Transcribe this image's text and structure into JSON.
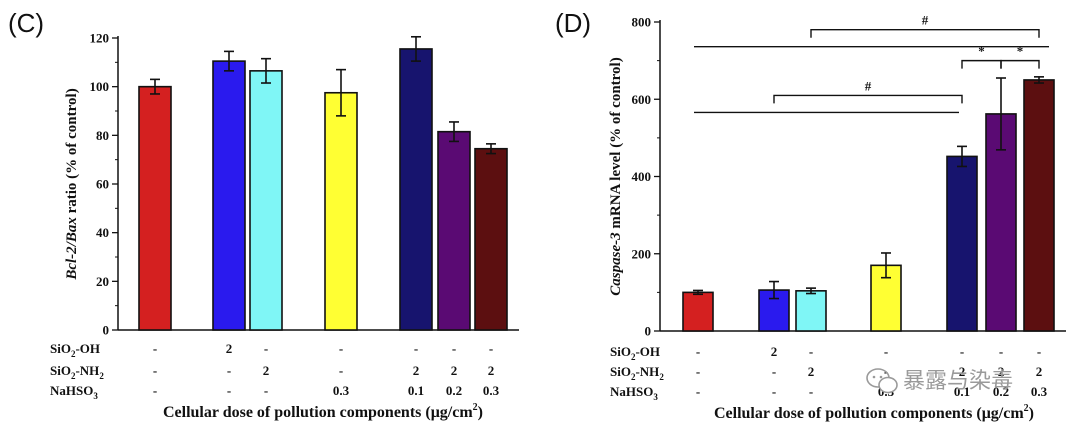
{
  "watermark": {
    "text": "暴露与染毒",
    "icon": "wechat-icon"
  },
  "chart_data": [
    {
      "panel": "(C)",
      "type": "bar",
      "ylabel_italic": "Bcl-2/Bax",
      "ylabel_rest": "ratio (% of control)",
      "ylim": [
        0,
        120
      ],
      "yticks": [
        0,
        20,
        40,
        60,
        80,
        100,
        120
      ],
      "xlabel_main": "Cellular dose of pollution components (",
      "xlabel_unit": "μg/cm",
      "xlabel_sup": "2",
      "xlabel_end": ")",
      "bars": [
        {
          "value": 100,
          "error": 3,
          "color": "#d42020",
          "group": 0
        },
        {
          "value": 110.5,
          "error": 4,
          "color": "#2a1aee",
          "group": 1
        },
        {
          "value": 106.5,
          "error": 5,
          "color": "#7ff6f6",
          "group": 1
        },
        {
          "value": 97.5,
          "error": 9.5,
          "color": "#ffff33",
          "group": 2
        },
        {
          "value": 115.5,
          "error": 5,
          "color": "#17146e",
          "group": 3
        },
        {
          "value": 81.5,
          "error": 4,
          "color": "#5a0a73",
          "group": 3
        },
        {
          "value": 74.5,
          "error": 2,
          "color": "#5c0f10",
          "group": 3
        }
      ],
      "table": {
        "rows": [
          {
            "label": "SiO",
            "sub": "2",
            "suffix": "-OH",
            "cells": [
              "-",
              "2",
              "-",
              "-",
              "-",
              "-",
              "-"
            ]
          },
          {
            "label": "SiO",
            "sub": "2",
            "suffix": "-NH",
            "sub2": "2",
            "cells": [
              "-",
              "-",
              "2",
              "-",
              "2",
              "2",
              "2"
            ]
          },
          {
            "label": "NaHSO",
            "sub": "3",
            "suffix": "",
            "cells": [
              "-",
              "-",
              "-",
              "0.3",
              "0.1",
              "0.2",
              "0.3"
            ]
          }
        ]
      },
      "significance": []
    },
    {
      "panel": "(D)",
      "type": "bar",
      "ylabel_italic": "Caspase-3",
      "ylabel_rest": "mRNA level (% of control)",
      "ylim": [
        0,
        800
      ],
      "yticks": [
        0,
        200,
        400,
        600,
        800
      ],
      "xlabel_main": "Cellular dose of pollution components (",
      "xlabel_unit": "μg/cm",
      "xlabel_sup": "2",
      "xlabel_end": ")",
      "bars": [
        {
          "value": 100,
          "error": 5,
          "color": "#d42020",
          "group": 0
        },
        {
          "value": 106,
          "error": 22,
          "color": "#2a1aee",
          "group": 1
        },
        {
          "value": 104,
          "error": 7,
          "color": "#7ff6f6",
          "group": 1
        },
        {
          "value": 170,
          "error": 32,
          "color": "#ffff33",
          "group": 2
        },
        {
          "value": 452,
          "error": 26,
          "color": "#17146e",
          "group": 3
        },
        {
          "value": 562,
          "error": 93,
          "color": "#5a0a73",
          "group": 3
        },
        {
          "value": 650,
          "error": 8,
          "color": "#5c0f10",
          "group": 3
        }
      ],
      "table": {
        "rows": [
          {
            "label": "SiO",
            "sub": "2",
            "suffix": "-OH",
            "cells": [
              "-",
              "2",
              "-",
              "-",
              "-",
              "-",
              "-"
            ]
          },
          {
            "label": "SiO",
            "sub": "2",
            "suffix": "-NH",
            "sub2": "2",
            "cells": [
              "-",
              "-",
              "2",
              "-",
              "2",
              "2",
              "2"
            ]
          },
          {
            "label": "NaHSO",
            "sub": "3",
            "suffix": "",
            "cells": [
              "-",
              "-",
              "-",
              "0.3",
              "0.1",
              "0.2",
              "0.3"
            ]
          }
        ]
      },
      "significance": [
        {
          "symbol": "#",
          "value": 780,
          "from_bar": 2,
          "to_bar": 6,
          "left_line_bar": 0
        },
        {
          "symbol": "*",
          "value": 700,
          "from_bar": 4,
          "to_bar": 5
        },
        {
          "symbol": "*",
          "value": 700,
          "from_bar": 5,
          "to_bar": 6
        },
        {
          "symbol": "#",
          "value": 610,
          "from_bar": 1,
          "to_bar": 4,
          "left_line_bar": 0
        }
      ]
    }
  ]
}
